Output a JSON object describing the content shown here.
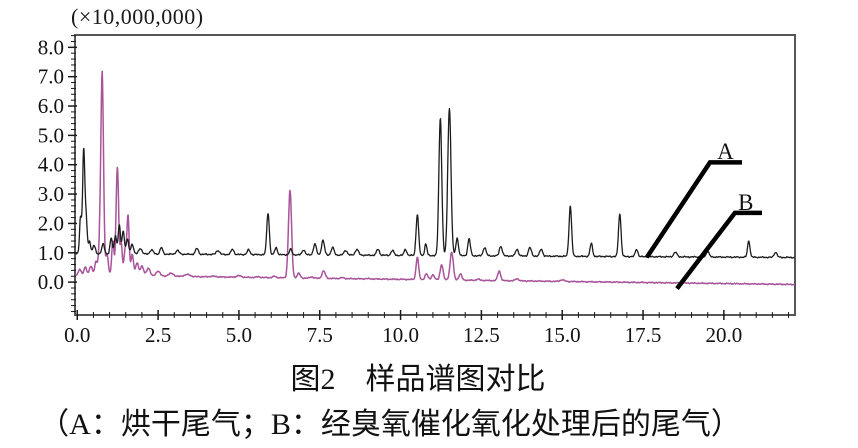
{
  "caption": {
    "title": "图2　样品谱图对比",
    "legend": "（A：烘干尾气；B：经臭氧催化氧化处理后的尾气）"
  },
  "chart_data": {
    "type": "line",
    "title": "",
    "scale_label": "(×10,000,000)",
    "xlabel": "",
    "ylabel": "",
    "xlim": [
      -0.07,
      22.2
    ],
    "ylim": [
      -1.12,
      8.42
    ],
    "x_ticks": [
      0.0,
      2.5,
      5.0,
      7.5,
      10.0,
      12.5,
      15.0,
      17.5,
      20.0
    ],
    "y_ticks": [
      0.0,
      1.0,
      2.0,
      3.0,
      4.0,
      5.0,
      6.0,
      7.0,
      8.0
    ],
    "x_minor_step": 0.5,
    "y_minor_step": 0.2,
    "grid": false,
    "frame_color": "#565656",
    "tick_color": "#1a1a1a",
    "text_color": "#111111",
    "legend_position": "annotated leader lines inside plot, right side",
    "series": [
      {
        "name": "B",
        "description": "tail gas after ozone catalytic oxidation treatment",
        "color": "#a8549a",
        "line_width": 1.5,
        "baseline_start": 0.24,
        "baseline_end": -0.08,
        "noise": 0.022,
        "peaks": [
          [
            0.08,
            0.45,
            0.04
          ],
          [
            0.25,
            0.5,
            0.045
          ],
          [
            0.42,
            0.55,
            0.045
          ],
          [
            0.58,
            0.7,
            0.04
          ],
          [
            0.68,
            0.95,
            0.035
          ],
          [
            0.77,
            7.15,
            0.042
          ],
          [
            0.92,
            0.95,
            0.04
          ],
          [
            1.1,
            1.4,
            0.035
          ],
          [
            1.24,
            3.9,
            0.04
          ],
          [
            1.36,
            1.3,
            0.035
          ],
          [
            1.48,
            1.1,
            0.035
          ],
          [
            1.57,
            2.25,
            0.035
          ],
          [
            1.7,
            0.95,
            0.04
          ],
          [
            1.85,
            0.65,
            0.045
          ],
          [
            2.0,
            0.55,
            0.05
          ],
          [
            2.2,
            0.48,
            0.055
          ],
          [
            2.5,
            0.38,
            0.06
          ],
          [
            2.9,
            0.3,
            0.08
          ],
          [
            3.4,
            0.26,
            0.09
          ],
          [
            4.2,
            0.2,
            0.09
          ],
          [
            5.0,
            0.22,
            0.07
          ],
          [
            5.6,
            0.18,
            0.06
          ],
          [
            6.1,
            0.2,
            0.05
          ],
          [
            6.58,
            3.12,
            0.048
          ],
          [
            6.85,
            0.3,
            0.045
          ],
          [
            7.25,
            0.18,
            0.05
          ],
          [
            7.62,
            0.38,
            0.05
          ],
          [
            8.2,
            0.15,
            0.06
          ],
          [
            9.0,
            0.12,
            0.06
          ],
          [
            10.52,
            0.85,
            0.04
          ],
          [
            10.8,
            0.28,
            0.045
          ],
          [
            11.0,
            0.25,
            0.045
          ],
          [
            11.27,
            0.6,
            0.045
          ],
          [
            11.58,
            1.02,
            0.05
          ],
          [
            11.85,
            0.28,
            0.045
          ],
          [
            12.4,
            0.1,
            0.05
          ],
          [
            13.05,
            0.38,
            0.045
          ],
          [
            13.6,
            0.12,
            0.05
          ],
          [
            15.0,
            0.08,
            0.06
          ]
        ]
      },
      {
        "name": "A",
        "description": "drying tail gas",
        "color": "#1c1c1c",
        "line_width": 1.3,
        "baseline_start": 0.97,
        "baseline_end": 0.84,
        "noise": 0.028,
        "peaks": [
          [
            0.1,
            2.2,
            0.03
          ],
          [
            0.2,
            4.55,
            0.035
          ],
          [
            0.28,
            2.05,
            0.03
          ],
          [
            0.38,
            1.4,
            0.035
          ],
          [
            0.52,
            1.25,
            0.04
          ],
          [
            0.8,
            1.3,
            0.04
          ],
          [
            1.05,
            1.5,
            0.035
          ],
          [
            1.18,
            1.6,
            0.035
          ],
          [
            1.3,
            1.95,
            0.035
          ],
          [
            1.42,
            1.75,
            0.035
          ],
          [
            1.55,
            1.45,
            0.04
          ],
          [
            1.7,
            1.3,
            0.04
          ],
          [
            1.95,
            1.15,
            0.05
          ],
          [
            2.3,
            1.1,
            0.05
          ],
          [
            2.6,
            1.18,
            0.04
          ],
          [
            3.1,
            1.08,
            0.05
          ],
          [
            3.7,
            1.15,
            0.045
          ],
          [
            4.35,
            1.08,
            0.05
          ],
          [
            4.8,
            1.12,
            0.045
          ],
          [
            5.3,
            1.1,
            0.045
          ],
          [
            5.9,
            2.35,
            0.04
          ],
          [
            6.15,
            1.18,
            0.04
          ],
          [
            6.6,
            1.12,
            0.04
          ],
          [
            7.0,
            1.1,
            0.045
          ],
          [
            7.35,
            1.3,
            0.045
          ],
          [
            7.6,
            1.42,
            0.045
          ],
          [
            7.9,
            1.18,
            0.045
          ],
          [
            8.3,
            1.08,
            0.05
          ],
          [
            8.65,
            1.12,
            0.05
          ],
          [
            9.3,
            1.12,
            0.045
          ],
          [
            9.75,
            1.08,
            0.045
          ],
          [
            10.15,
            1.12,
            0.04
          ],
          [
            10.52,
            2.3,
            0.04
          ],
          [
            10.78,
            1.3,
            0.035
          ],
          [
            11.23,
            5.6,
            0.045
          ],
          [
            11.51,
            5.92,
            0.05
          ],
          [
            11.75,
            1.5,
            0.04
          ],
          [
            12.12,
            1.48,
            0.04
          ],
          [
            12.6,
            1.18,
            0.045
          ],
          [
            13.1,
            1.22,
            0.045
          ],
          [
            13.6,
            1.12,
            0.045
          ],
          [
            14.0,
            1.18,
            0.045
          ],
          [
            14.35,
            1.12,
            0.045
          ],
          [
            15.25,
            2.6,
            0.04
          ],
          [
            15.9,
            1.32,
            0.038
          ],
          [
            16.78,
            2.32,
            0.04
          ],
          [
            17.3,
            1.12,
            0.04
          ],
          [
            18.5,
            1.02,
            0.05
          ],
          [
            19.5,
            1.05,
            0.045
          ],
          [
            20.77,
            1.4,
            0.038
          ],
          [
            21.6,
            1.02,
            0.045
          ]
        ]
      }
    ],
    "annotations": [
      {
        "label": "A",
        "points": [
          [
            17.62,
            0.85
          ],
          [
            19.57,
            4.08
          ],
          [
            20.56,
            4.08
          ]
        ],
        "label_pos": [
          20.05,
          4.2
        ],
        "line_width": 4.5,
        "color": "#000000"
      },
      {
        "label": "B",
        "points": [
          [
            18.55,
            -0.22
          ],
          [
            20.34,
            2.36
          ],
          [
            21.18,
            2.36
          ]
        ],
        "label_pos": [
          20.68,
          2.45
        ],
        "line_width": 4.5,
        "color": "#000000"
      }
    ]
  }
}
